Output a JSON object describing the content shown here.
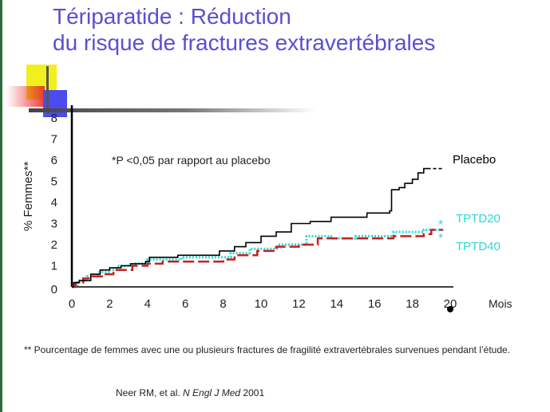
{
  "slide": {
    "title_line1": "Tériparatide : Réduction",
    "title_line2": "du risque de fractures extravertébrales",
    "footnote": "** Pourcentage de femmes avec une ou plusieurs fractures de fragilité extravertébrales survenues pendant l’étude.",
    "citation_authors": "Neer RM, et al.",
    "citation_journal": "N Engl J Med",
    "citation_year": "2001",
    "colors": {
      "title": "#5a4fd1",
      "placebo": "#000000",
      "tptd20": "#2fd6d6",
      "tptd40": "#c8201e"
    }
  },
  "chart_data": {
    "type": "line",
    "title": "",
    "xlabel": "Mois",
    "ylabel": "% Femmes**",
    "xlim": [
      0,
      20
    ],
    "ylim": [
      0,
      8
    ],
    "xticks": [
      0,
      2,
      4,
      6,
      8,
      10,
      12,
      14,
      16,
      18,
      20
    ],
    "yticks": [
      0,
      1,
      2,
      3,
      4,
      5,
      6,
      7,
      8
    ],
    "annotation": "*P <0,05 par rapport au placebo",
    "significance_marker": "*",
    "series": [
      {
        "name": "Placebo",
        "style": "solid",
        "color": "#000000",
        "points": [
          [
            0,
            0
          ],
          [
            0.1,
            0.2
          ],
          [
            0.4,
            0.3
          ],
          [
            1.0,
            0.6
          ],
          [
            1.5,
            0.8
          ],
          [
            2.0,
            0.9
          ],
          [
            2.6,
            1.0
          ],
          [
            3.1,
            1.1
          ],
          [
            3.9,
            1.2
          ],
          [
            4.1,
            1.4
          ],
          [
            5.4,
            1.4
          ],
          [
            5.6,
            1.5
          ],
          [
            7.4,
            1.5
          ],
          [
            7.8,
            1.7
          ],
          [
            8.6,
            1.9
          ],
          [
            9.2,
            2.1
          ],
          [
            10.0,
            2.4
          ],
          [
            10.8,
            2.6
          ],
          [
            11.6,
            3.0
          ],
          [
            12.6,
            3.1
          ],
          [
            13.7,
            3.3
          ],
          [
            15.6,
            3.5
          ],
          [
            16.8,
            3.6
          ],
          [
            16.9,
            4.6
          ],
          [
            17.3,
            4.7
          ],
          [
            17.6,
            4.9
          ],
          [
            18.0,
            5.1
          ],
          [
            18.3,
            5.4
          ],
          [
            18.6,
            5.6
          ],
          [
            18.8,
            5.6
          ]
        ],
        "extension": [
          [
            18.8,
            5.6
          ],
          [
            19.6,
            5.6
          ]
        ]
      },
      {
        "name": "TPTD20",
        "style": "dotted",
        "color": "#2fd6d6",
        "points": [
          [
            0,
            0
          ],
          [
            0.3,
            0.3
          ],
          [
            0.8,
            0.5
          ],
          [
            1.4,
            0.7
          ],
          [
            2.0,
            0.8
          ],
          [
            2.4,
            1.0
          ],
          [
            3.3,
            1.1
          ],
          [
            4.0,
            1.3
          ],
          [
            5.6,
            1.3
          ],
          [
            5.8,
            1.4
          ],
          [
            8.0,
            1.4
          ],
          [
            8.4,
            1.6
          ],
          [
            9.4,
            1.8
          ],
          [
            10.6,
            1.8
          ],
          [
            10.9,
            2.0
          ],
          [
            12.4,
            2.4
          ],
          [
            13.7,
            2.3
          ],
          [
            15.0,
            2.4
          ],
          [
            17.0,
            2.6
          ],
          [
            18.6,
            2.7
          ],
          [
            19.6,
            2.8
          ]
        ]
      },
      {
        "name": "TPTD40",
        "style": "dashed",
        "color": "#c8201e",
        "points": [
          [
            0,
            0
          ],
          [
            0.2,
            0.2
          ],
          [
            0.6,
            0.4
          ],
          [
            1.0,
            0.5
          ],
          [
            1.6,
            0.6
          ],
          [
            2.2,
            0.8
          ],
          [
            3.2,
            1.0
          ],
          [
            4.0,
            1.1
          ],
          [
            4.8,
            1.2
          ],
          [
            7.5,
            1.2
          ],
          [
            8.0,
            1.3
          ],
          [
            8.6,
            1.5
          ],
          [
            9.8,
            1.7
          ],
          [
            10.8,
            1.9
          ],
          [
            12.0,
            2.0
          ],
          [
            13.0,
            2.3
          ],
          [
            14.8,
            2.3
          ],
          [
            17.0,
            2.4
          ],
          [
            18.6,
            2.5
          ],
          [
            19.0,
            2.7
          ],
          [
            19.6,
            2.7
          ]
        ]
      }
    ],
    "legend": [
      {
        "name": "Placebo",
        "mark": ""
      },
      {
        "name": "TPTD20",
        "mark": "*"
      },
      {
        "name": "TPTD40",
        "mark": "*"
      }
    ]
  }
}
